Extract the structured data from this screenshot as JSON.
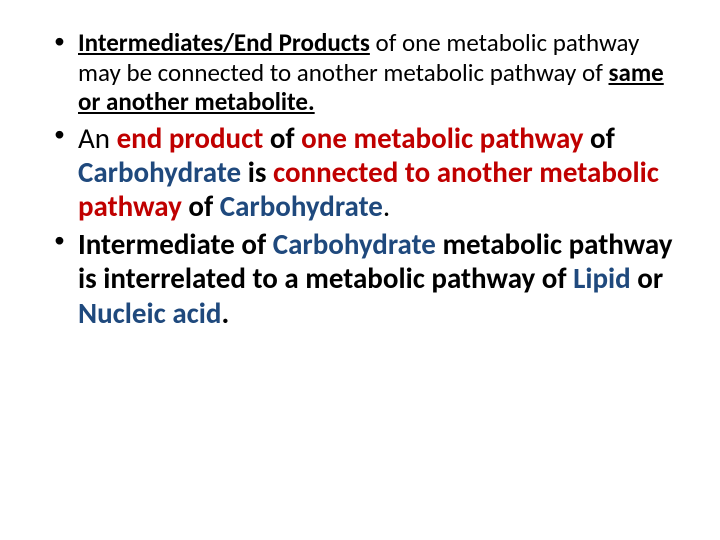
{
  "colors": {
    "text": "#000000",
    "red": "#c00000",
    "blue": "#1f497d",
    "bg": "#ffffff"
  },
  "bullets": [
    {
      "class": "b1",
      "segments": [
        {
          "t": "Intermediates/End Products",
          "cls": "bold u"
        },
        {
          "t": " of one metabolic pathway may be connected to another metabolic pathway of ",
          "cls": ""
        },
        {
          "t": "same or another metabolite.",
          "cls": "bold u"
        }
      ]
    },
    {
      "class": "b2",
      "segments": [
        {
          "t": "An ",
          "cls": ""
        },
        {
          "t": "end product",
          "cls": "bold red"
        },
        {
          "t": " of ",
          "cls": "bold"
        },
        {
          "t": "one metabolic pathway",
          "cls": "bold red"
        },
        {
          "t": " of ",
          "cls": "bold"
        },
        {
          "t": "Carbohydrate",
          "cls": "bold blue"
        },
        {
          "t": " is ",
          "cls": "bold"
        },
        {
          "t": "connected to another metabolic pathway",
          "cls": "bold red"
        },
        {
          "t": " of ",
          "cls": "bold"
        },
        {
          "t": "Carbohydrate",
          "cls": "bold blue"
        },
        {
          "t": ".",
          "cls": ""
        }
      ]
    },
    {
      "class": "b3",
      "segments": [
        {
          "t": "Intermediate of ",
          "cls": "bold"
        },
        {
          "t": "Carbohydrate",
          "cls": "bold blue"
        },
        {
          "t": " metabolic pathway",
          "cls": "bold"
        },
        {
          "t": " is interrelated to a metabolic pathway of ",
          "cls": "bold"
        },
        {
          "t": "Lipid",
          "cls": "bold blue"
        },
        {
          "t": " or ",
          "cls": "bold"
        },
        {
          "t": "Nucleic acid",
          "cls": "bold blue"
        },
        {
          "t": ".",
          "cls": "bold"
        }
      ]
    }
  ]
}
